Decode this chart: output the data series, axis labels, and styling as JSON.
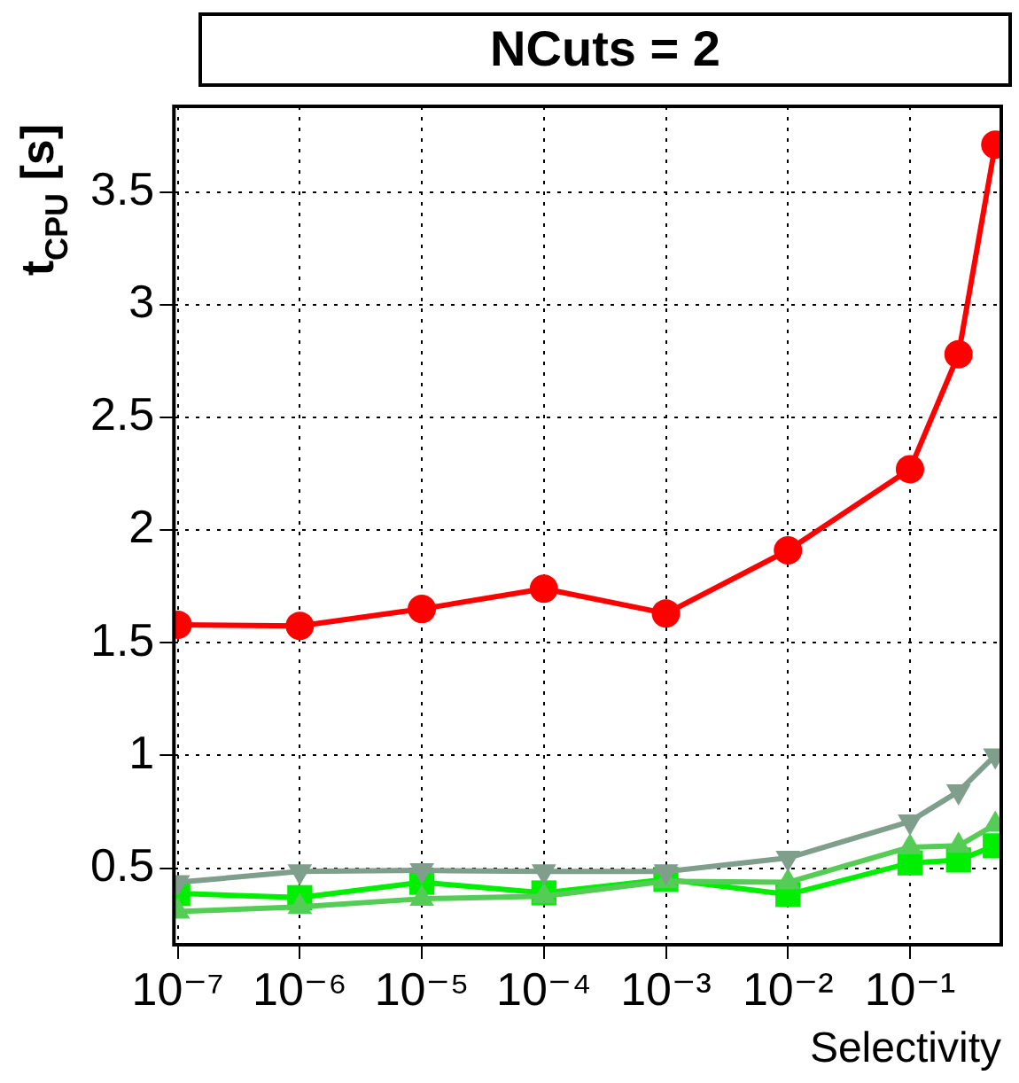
{
  "chart_data": {
    "type": "line",
    "title": "NCuts = 2",
    "xlabel": "Selectivity",
    "ylabel": "t$_{CPU}$ [s]",
    "log": "x",
    "grid": true,
    "legend": false,
    "line_style": "solid",
    "x": [
      1e-07,
      1e-06,
      1e-05,
      0.0001,
      0.001,
      0.01,
      0.1,
      0.25,
      0.5
    ],
    "xlim": [
      9.3e-08,
      0.56
    ],
    "xticks": [
      {
        "value": 1e-07,
        "label": "10⁻⁷"
      },
      {
        "value": 1e-06,
        "label": "10⁻⁶"
      },
      {
        "value": 1e-05,
        "label": "10⁻⁵"
      },
      {
        "value": 0.0001,
        "label": "10⁻⁴"
      },
      {
        "value": 0.001,
        "label": "10⁻³"
      },
      {
        "value": 0.01,
        "label": "10⁻²"
      },
      {
        "value": 0.1,
        "label": "10⁻¹"
      }
    ],
    "ylim": [
      0.16,
      3.88
    ],
    "yticks": [
      0.5,
      1,
      1.5,
      2,
      2.5,
      3,
      3.5
    ],
    "series": [
      {
        "color": "#ff0000",
        "marker": "circle",
        "values": [
          1.58,
          1.575,
          1.65,
          1.74,
          1.63,
          1.91,
          2.27,
          2.78,
          3.71
        ]
      },
      {
        "color": "#7f9f8c",
        "marker": "triangle-down",
        "values": [
          0.437,
          0.485,
          0.49,
          0.485,
          0.485,
          0.545,
          0.707,
          0.84,
          1.0
        ]
      },
      {
        "color": "#55cc55",
        "marker": "triangle",
        "values": [
          0.307,
          0.328,
          0.364,
          0.375,
          0.442,
          0.437,
          0.593,
          0.599,
          0.693
        ]
      },
      {
        "color": "#00ee00",
        "marker": "square",
        "values": [
          0.388,
          0.369,
          0.437,
          0.39,
          0.45,
          0.383,
          0.523,
          0.536,
          0.599
        ]
      }
    ]
  }
}
